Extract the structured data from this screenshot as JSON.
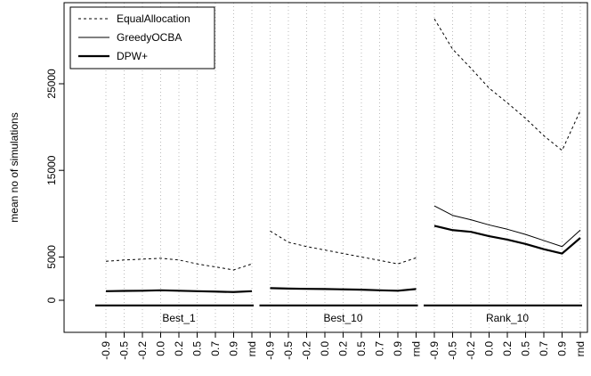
{
  "chart_data": {
    "type": "line",
    "xlabel": "",
    "ylabel": "mean no of simulations",
    "ylim": [
      -3500,
      33000
    ],
    "yticks": [
      0,
      5000,
      15000,
      25000
    ],
    "grid": "vertical dotted",
    "legend_position": "top-left",
    "x": [
      "-0.9",
      "-0.5",
      "-0.2",
      "0.0",
      "0.2",
      "0.5",
      "0.7",
      "0.9",
      "rnd"
    ],
    "series_styles": [
      {
        "name": "EqualAllocation",
        "dash": "3,3",
        "width": 1
      },
      {
        "name": "GreedyOCBA",
        "dash": "",
        "width": 1
      },
      {
        "name": "DPW+",
        "dash": "",
        "width": 2.2
      }
    ],
    "reference_level": -600,
    "groups": [
      {
        "label": "Best_1",
        "series": [
          {
            "name": "EqualAllocation",
            "values": [
              4500,
              4650,
              4750,
              4850,
              4650,
              4200,
              3850,
              3500,
              4200
            ]
          },
          {
            "name": "GreedyOCBA",
            "values": [
              1050,
              1080,
              1100,
              1150,
              1100,
              1050,
              1000,
              950,
              1050
            ]
          },
          {
            "name": "DPW+",
            "values": [
              1050,
              1080,
              1100,
              1150,
              1100,
              1050,
              1000,
              950,
              1050
            ]
          }
        ]
      },
      {
        "label": "Best_10",
        "series": [
          {
            "name": "EqualAllocation",
            "values": [
              8000,
              6700,
              6200,
              5800,
              5400,
              5000,
              4600,
              4200,
              4900
            ]
          },
          {
            "name": "GreedyOCBA",
            "values": [
              1400,
              1350,
              1320,
              1300,
              1260,
              1220,
              1150,
              1100,
              1300
            ]
          },
          {
            "name": "DPW+",
            "values": [
              1400,
              1350,
              1320,
              1300,
              1260,
              1220,
              1150,
              1100,
              1300
            ]
          }
        ]
      },
      {
        "label": "Rank_10",
        "series": [
          {
            "name": "EqualAllocation",
            "values": [
              32500,
              29000,
              26800,
              24500,
              22800,
              21000,
              19000,
              17300,
              21900
            ]
          },
          {
            "name": "GreedyOCBA",
            "values": [
              10900,
              9800,
              9300,
              8700,
              8200,
              7600,
              6900,
              6200,
              8100
            ]
          },
          {
            "name": "DPW+",
            "values": [
              8600,
              8100,
              7900,
              7400,
              7000,
              6500,
              5900,
              5400,
              7200
            ]
          }
        ]
      }
    ]
  }
}
